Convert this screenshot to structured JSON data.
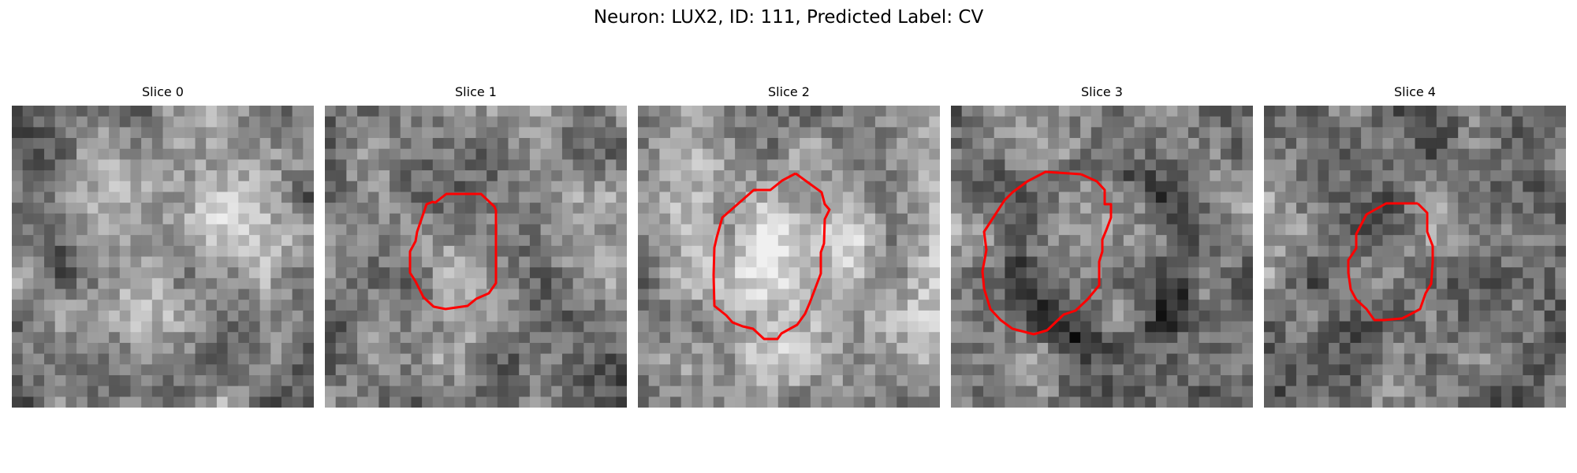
{
  "figure": {
    "title": "Neuron: LUX2, ID: 111, Predicted Label: CV"
  },
  "colors": {
    "contour": "#ff0000",
    "background": "#ffffff",
    "colormap": "gray"
  },
  "panels": [
    {
      "title": "Slice 0",
      "has_contour": false
    },
    {
      "title": "Slice 1",
      "has_contour": true
    },
    {
      "title": "Slice 2",
      "has_contour": true
    },
    {
      "title": "Slice 3",
      "has_contour": true
    },
    {
      "title": "Slice 4",
      "has_contour": true
    }
  ]
}
